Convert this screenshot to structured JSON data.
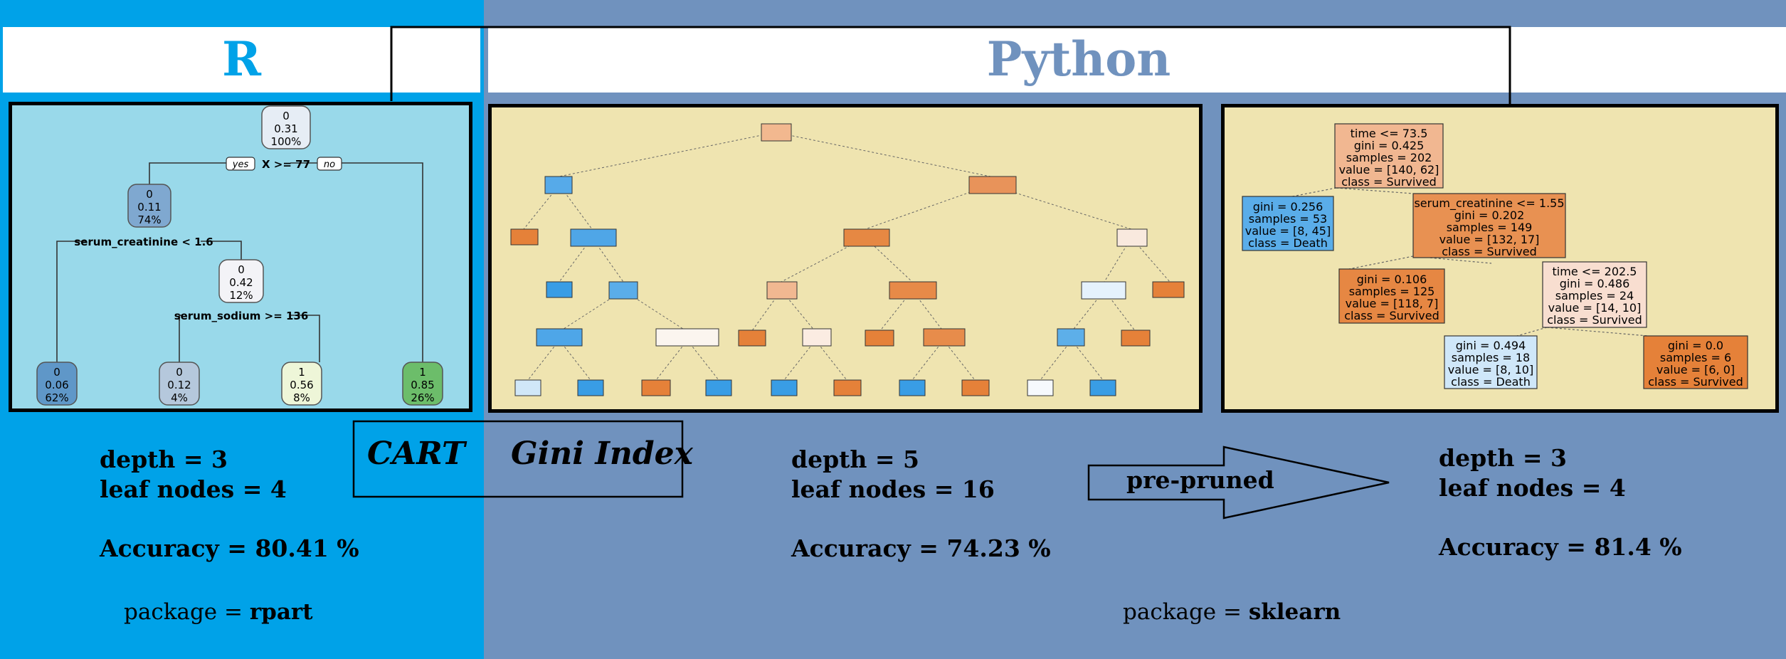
{
  "left": {
    "title": "R",
    "tree": {
      "root": [
        "0",
        "0.31",
        "100%"
      ],
      "split1": "X >= 77",
      "yes": "yes",
      "no": "no",
      "node2": [
        "0",
        "0.11",
        "74%"
      ],
      "split2": "serum_creatinine < 1.6",
      "node3": [
        "0",
        "0.42",
        "12%"
      ],
      "split3": "serum_sodium >= 136",
      "leaves": [
        [
          "0",
          "0.06",
          "62%"
        ],
        [
          "0",
          "0.12",
          "4%"
        ],
        [
          "1",
          "0.56",
          "8%"
        ],
        [
          "1",
          "0.85",
          "26%"
        ]
      ]
    },
    "stats": {
      "depth": "depth = 3",
      "leaf_nodes": "leaf nodes = 4",
      "accuracy": "Accuracy = 80.41 %"
    },
    "package_prefix": "package = ",
    "package_name": "rpart"
  },
  "middle": {
    "cart": "CART",
    "gini": "Gini Index"
  },
  "right": {
    "title": "Python",
    "full_stats": {
      "depth": "depth = 5",
      "leaf_nodes": "leaf nodes = 16",
      "accuracy": "Accuracy = 74.23 %"
    },
    "arrow_label": "pre-pruned",
    "pruned_stats": {
      "depth": "depth = 3",
      "leaf_nodes": "leaf nodes = 4",
      "accuracy": "Accuracy = 81.4 %"
    },
    "package_prefix": "package = ",
    "package_name": "sklearn",
    "pruned_tree": {
      "root": [
        "time <= 73.5",
        "gini = 0.425",
        "samples = 202",
        "value = [140, 62]",
        "class = Survived"
      ],
      "n1": [
        "gini = 0.256",
        "samples = 53",
        "value = [8, 45]",
        "class = Death"
      ],
      "n2": [
        "serum_creatinine <= 1.55",
        "gini = 0.202",
        "samples = 149",
        "value = [132, 17]",
        "class = Survived"
      ],
      "n3": [
        "gini = 0.106",
        "samples = 125",
        "value = [118, 7]",
        "class = Survived"
      ],
      "n4": [
        "time <= 202.5",
        "gini = 0.486",
        "samples = 24",
        "value = [14, 10]",
        "class = Survived"
      ],
      "n5": [
        "gini = 0.494",
        "samples = 18",
        "value = [8, 10]",
        "class = Death"
      ],
      "n6": [
        "gini = 0.0",
        "samples = 6",
        "value = [6, 0]",
        "class = Survived"
      ]
    }
  },
  "colors": {
    "r_bg": "#00a2e8",
    "py_bg": "#7092be",
    "r_title": "#00a2e8",
    "py_title": "#7092be",
    "orange": "#e58139",
    "blue": "#399de5"
  }
}
